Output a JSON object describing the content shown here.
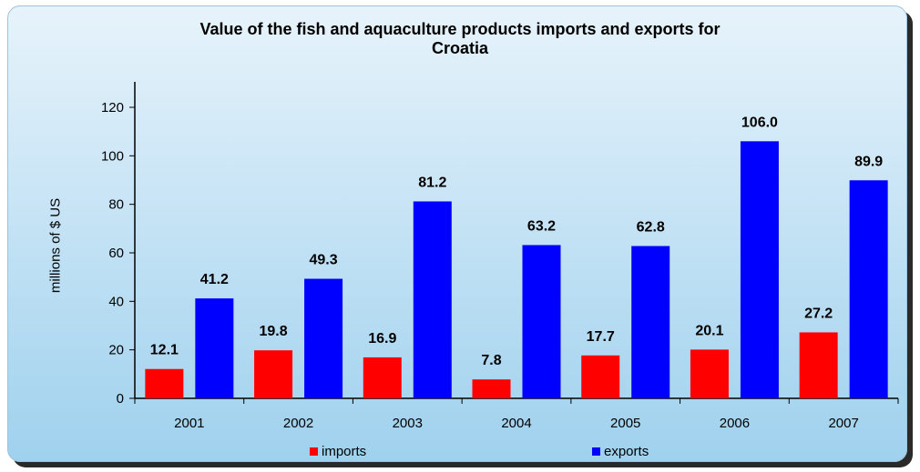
{
  "chart_data": {
    "type": "bar",
    "title_line1": "Value of the fish and aquaculture products imports and exports for",
    "title_line2": "Croatia",
    "xlabel": "",
    "ylabel": "millions of $ US",
    "ylim": [
      0,
      120
    ],
    "yticks": [
      0,
      20,
      40,
      60,
      80,
      100,
      120
    ],
    "grid": false,
    "legend_position": "bottom",
    "categories": [
      "2001",
      "2002",
      "2003",
      "2004",
      "2005",
      "2006",
      "2007"
    ],
    "series": [
      {
        "name": "imports",
        "color": "#ff0000",
        "values": [
          12.1,
          19.8,
          16.9,
          7.8,
          17.7,
          20.1,
          27.2
        ],
        "labels": [
          "12.1",
          "19.8",
          "16.9",
          "7.8",
          "17.7",
          "20.1",
          "27.2"
        ]
      },
      {
        "name": "exports",
        "color": "#0000ff",
        "values": [
          41.2,
          49.3,
          81.2,
          63.2,
          62.8,
          106.0,
          89.9
        ],
        "labels": [
          "41.2",
          "49.3",
          "81.2",
          "63.2",
          "62.8",
          "106.0",
          "89.9"
        ]
      }
    ]
  }
}
